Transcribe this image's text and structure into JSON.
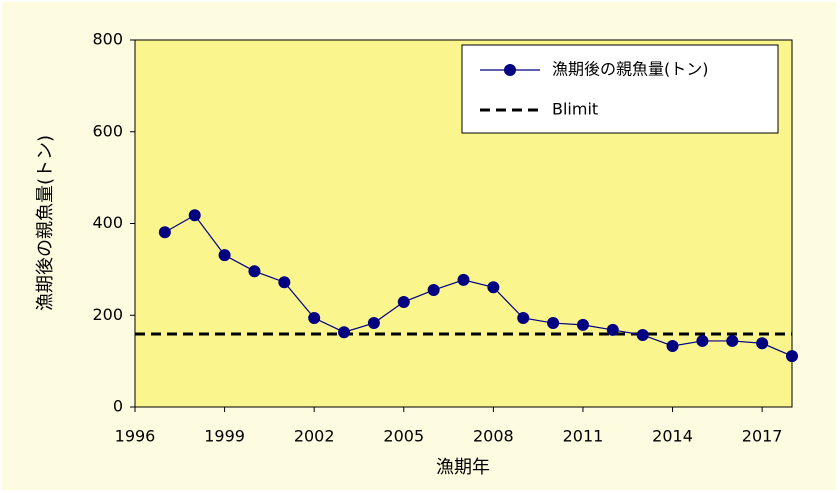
{
  "chart_data": {
    "type": "line",
    "x_label": "漁期年",
    "y_label": "漁期後の親魚量(トン)",
    "x": [
      1997,
      1998,
      1999,
      2000,
      2001,
      2002,
      2003,
      2004,
      2005,
      2006,
      2007,
      2008,
      2009,
      2010,
      2011,
      2012,
      2013,
      2014,
      2015,
      2016,
      2017,
      2018
    ],
    "series": [
      {
        "name": "漁期後の親魚量(トン)",
        "color": "#000080",
        "values": [
          381,
          418,
          331,
          296,
          272,
          194,
          163,
          183,
          229,
          255,
          277,
          261,
          194,
          183,
          179,
          168,
          157,
          133,
          144,
          144,
          139,
          111
        ]
      }
    ],
    "reference_lines": [
      {
        "name": "Blimit",
        "value": 159,
        "color": "#000000",
        "dashed": true
      }
    ],
    "xlim": [
      1996,
      2018
    ],
    "xticks": [
      1996,
      1999,
      2002,
      2005,
      2008,
      2011,
      2014,
      2017
    ],
    "ylim": [
      0,
      800
    ],
    "yticks": [
      0,
      200,
      400,
      600,
      800
    ],
    "legend": "upper right",
    "grid": false
  }
}
